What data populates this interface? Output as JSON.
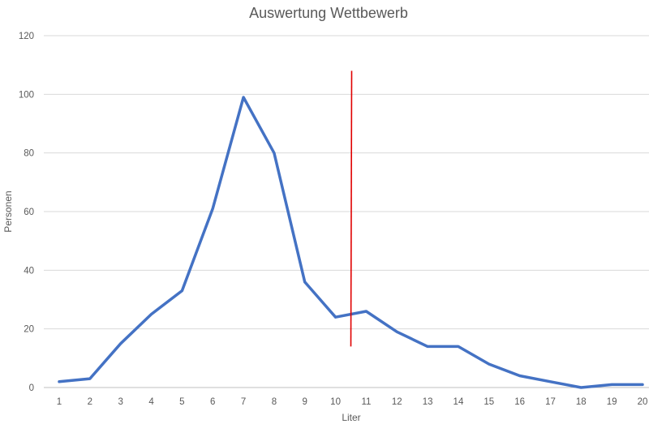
{
  "chart_data": {
    "type": "line",
    "title": "Auswertung Wettbewerb",
    "xlabel": "Liter",
    "ylabel": "Personen",
    "ylim": [
      0,
      120
    ],
    "y_ticks": [
      0,
      20,
      40,
      60,
      80,
      100,
      120
    ],
    "grid": true,
    "categories": [
      1,
      2,
      3,
      4,
      5,
      6,
      7,
      8,
      9,
      10,
      11,
      12,
      13,
      14,
      15,
      16,
      17,
      18,
      19,
      20
    ],
    "series": [
      {
        "values": [
          2,
          3,
          15,
          25,
          33,
          61,
          99,
          80,
          36,
          24,
          26,
          19,
          14,
          14,
          8,
          4,
          2,
          0,
          1,
          1
        ],
        "color": "#4472C4"
      }
    ],
    "annotations": [
      {
        "type": "vertical-line",
        "x": 10.5,
        "y_from": 14,
        "y_to": 108,
        "color": "#E00000"
      }
    ]
  }
}
